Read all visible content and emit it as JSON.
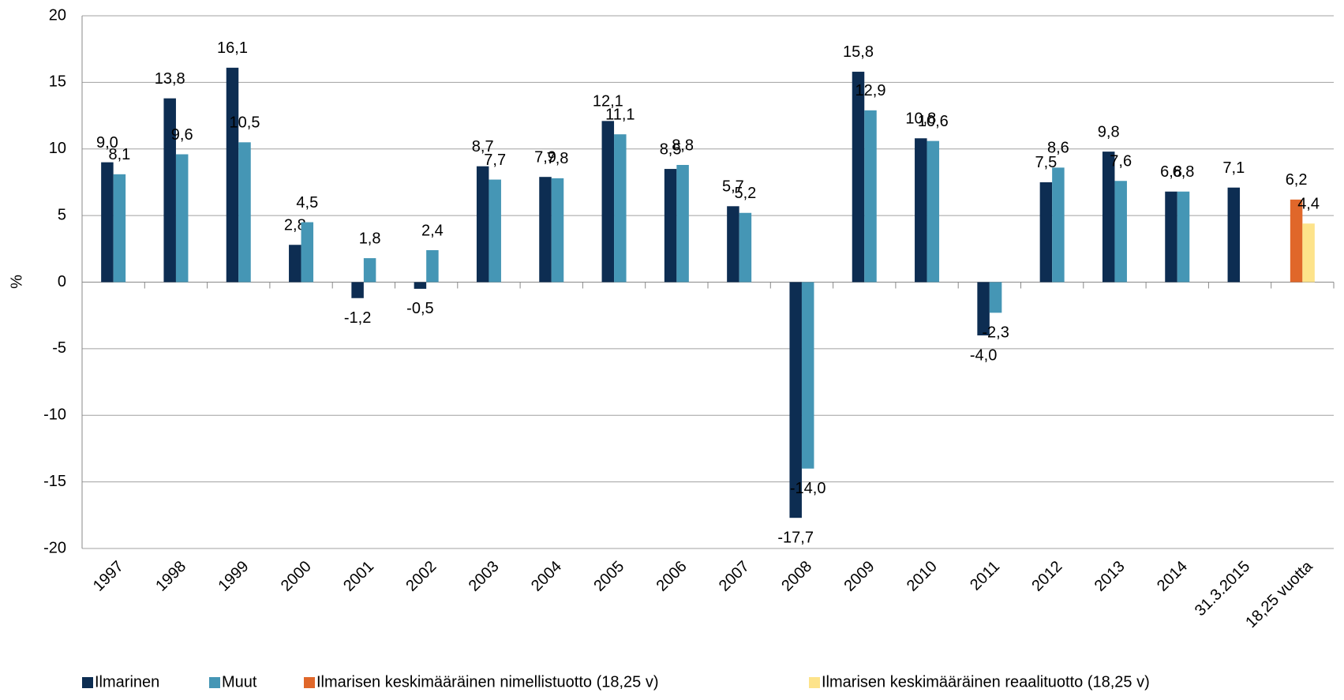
{
  "chart_data": {
    "type": "bar",
    "y_label": "%",
    "categories": [
      "1997",
      "1998",
      "1999",
      "2000",
      "2001",
      "2002",
      "2003",
      "2004",
      "2005",
      "2006",
      "2007",
      "2008",
      "2009",
      "2010",
      "2011",
      "2012",
      "2013",
      "2014",
      "31.3.2015",
      "18,25 vuotta"
    ],
    "series": [
      {
        "name": "Ilmarinen",
        "color": "#0d2d52",
        "values": [
          9.0,
          13.8,
          16.1,
          2.8,
          -1.2,
          -0.5,
          8.7,
          7.9,
          12.1,
          8.5,
          5.7,
          -17.7,
          15.8,
          10.8,
          -4.0,
          7.5,
          9.8,
          6.8,
          7.1,
          null
        ],
        "value_labels": [
          "9,0",
          "13,8",
          "16,1",
          "2,8",
          "-1,2",
          "-0,5",
          "8,7",
          "7,9",
          "12,1",
          "8,5",
          "5,7",
          "-17,7",
          "15,8",
          "10,8",
          "-4,0",
          "7,5",
          "9,8",
          "6,8",
          "7,1",
          null
        ]
      },
      {
        "name": "Muut",
        "color": "#4596b5",
        "values": [
          8.1,
          9.6,
          10.5,
          4.5,
          1.8,
          2.4,
          7.7,
          7.8,
          11.1,
          8.8,
          5.2,
          -14.0,
          12.9,
          10.6,
          -2.3,
          8.6,
          7.6,
          6.8,
          null,
          null
        ],
        "value_labels": [
          "8,1",
          "9,6",
          "10,5",
          "4,5",
          "1,8",
          "2,4",
          "7,7",
          "7,8",
          "11,1",
          "8,8",
          "5,2",
          "-14,0",
          "12,9",
          "10,6",
          "-2,3",
          "8,6",
          "7,6",
          "6,8",
          null,
          null
        ]
      },
      {
        "name": "Ilmarisen keskimääräinen nimellistuotto (18,25 v)",
        "color": "#e0672a",
        "values": [
          null,
          null,
          null,
          null,
          null,
          null,
          null,
          null,
          null,
          null,
          null,
          null,
          null,
          null,
          null,
          null,
          null,
          null,
          null,
          6.2
        ],
        "value_labels": [
          null,
          null,
          null,
          null,
          null,
          null,
          null,
          null,
          null,
          null,
          null,
          null,
          null,
          null,
          null,
          null,
          null,
          null,
          null,
          "6,2"
        ]
      },
      {
        "name": "Ilmarisen keskimääräinen reaalituotto (18,25 v)",
        "color": "#fde38a",
        "values": [
          null,
          null,
          null,
          null,
          null,
          null,
          null,
          null,
          null,
          null,
          null,
          null,
          null,
          null,
          null,
          null,
          null,
          null,
          null,
          4.4
        ],
        "value_labels": [
          null,
          null,
          null,
          null,
          null,
          null,
          null,
          null,
          null,
          null,
          null,
          null,
          null,
          null,
          null,
          null,
          null,
          null,
          null,
          "4,4"
        ]
      }
    ],
    "ylim": [
      -20,
      20
    ],
    "yticks": [
      20,
      15,
      10,
      5,
      0,
      -5,
      -10,
      -15,
      -20
    ],
    "grid": true,
    "legend": "bottom"
  }
}
